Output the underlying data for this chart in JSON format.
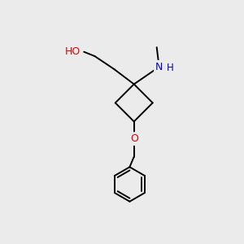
{
  "background_color": "#ebebeb",
  "bond_color": "#000000",
  "atom_colors": {
    "O": "#e00000",
    "N": "#0000cc",
    "C": "#000000",
    "H": "#000000"
  },
  "figsize": [
    3.0,
    3.0
  ],
  "dpi": 100,
  "lw": 1.4
}
